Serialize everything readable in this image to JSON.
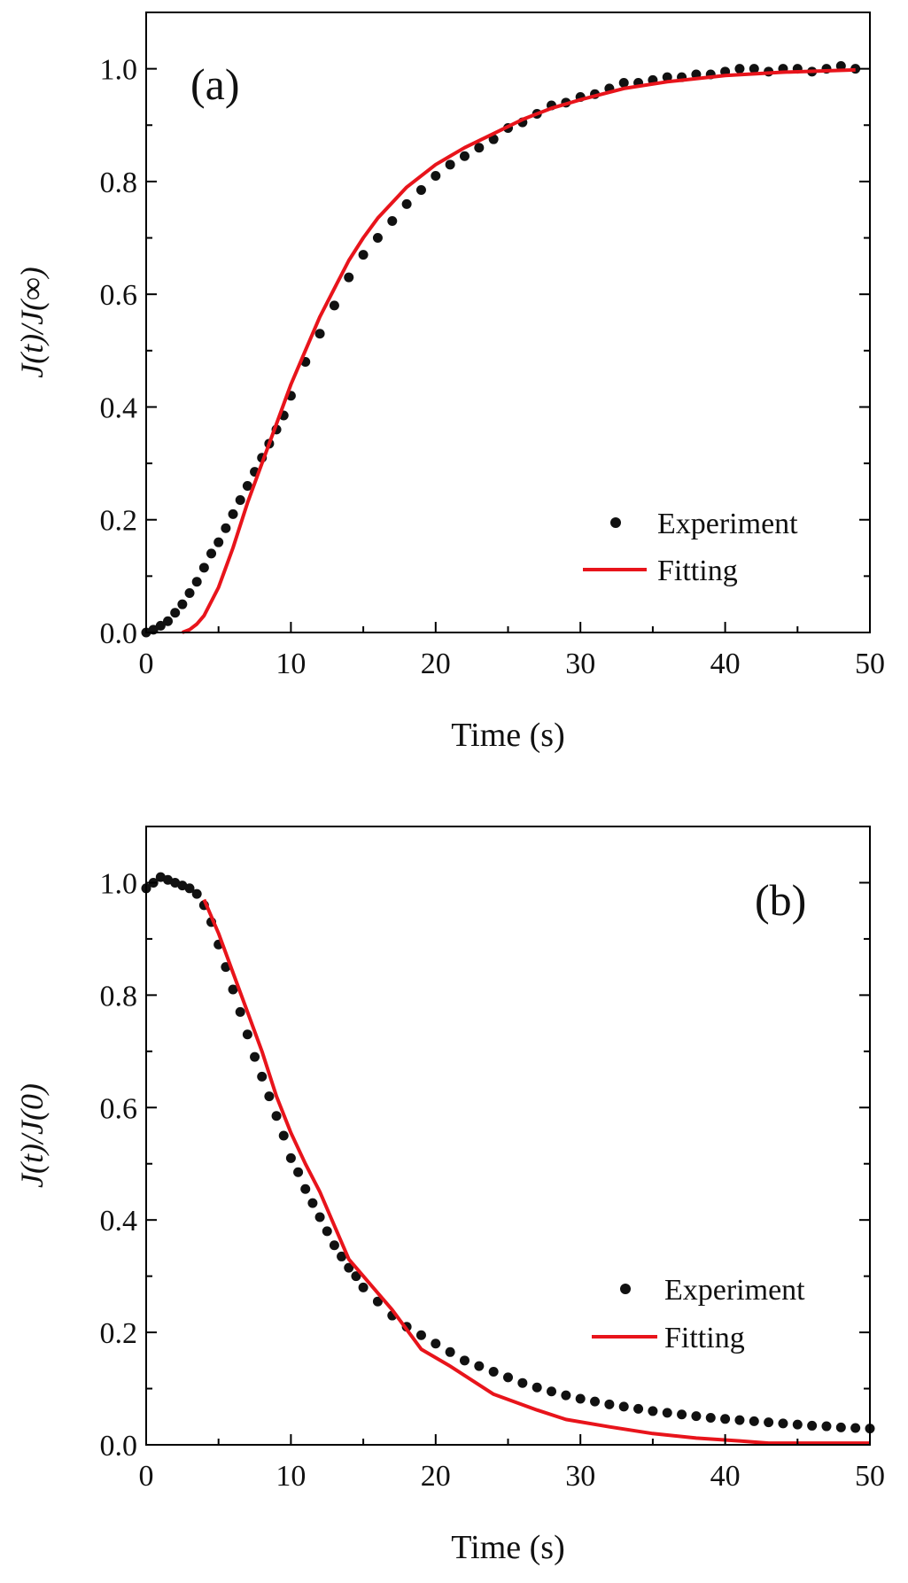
{
  "colors": {
    "experiment": "#111111",
    "fitting": "#e8141b",
    "axis": "#000000"
  },
  "chart_data": [
    {
      "type": "scatter",
      "panel_label": "(a)",
      "xlabel": "Time (s)",
      "ylabel": "J(t)/J(∞)",
      "xlim": [
        0,
        50
      ],
      "ylim": [
        0,
        1.1
      ],
      "xticks": [
        0,
        10,
        20,
        30,
        40,
        50
      ],
      "xtick_labels": [
        "0",
        "10",
        "20",
        "30",
        "40",
        "50"
      ],
      "yticks": [
        0,
        0.2,
        0.4,
        0.6,
        0.8,
        1.0
      ],
      "ytick_labels": [
        "0.0",
        "0.2",
        "0.4",
        "0.6",
        "0.8",
        "1.0"
      ],
      "legend_placement": "bottom-right",
      "series": [
        {
          "name": "Experiment",
          "style": "markers",
          "x": [
            0,
            0.5,
            1,
            1.5,
            2,
            2.5,
            3,
            3.5,
            4,
            4.5,
            5,
            5.5,
            6,
            6.5,
            7,
            7.5,
            8,
            8.5,
            9,
            9.5,
            10,
            11,
            12,
            13,
            14,
            15,
            16,
            17,
            18,
            19,
            20,
            21,
            22,
            23,
            24,
            25,
            26,
            27,
            28,
            29,
            30,
            31,
            32,
            33,
            34,
            35,
            36,
            37,
            38,
            39,
            40,
            41,
            42,
            43,
            44,
            45,
            46,
            47,
            48,
            49
          ],
          "y": [
            0,
            0.005,
            0.012,
            0.02,
            0.035,
            0.05,
            0.07,
            0.09,
            0.115,
            0.14,
            0.16,
            0.185,
            0.21,
            0.235,
            0.26,
            0.285,
            0.31,
            0.335,
            0.36,
            0.385,
            0.42,
            0.48,
            0.53,
            0.58,
            0.63,
            0.67,
            0.7,
            0.73,
            0.76,
            0.785,
            0.81,
            0.83,
            0.845,
            0.86,
            0.875,
            0.895,
            0.905,
            0.92,
            0.935,
            0.94,
            0.95,
            0.955,
            0.965,
            0.975,
            0.975,
            0.98,
            0.985,
            0.985,
            0.99,
            0.99,
            0.995,
            1.0,
            1.0,
            0.995,
            1.0,
            1.0,
            0.995,
            1.0,
            1.005,
            1.0
          ]
        },
        {
          "name": "Fitting",
          "style": "line",
          "x": [
            2.5,
            3,
            3.5,
            4,
            5,
            6,
            7,
            8,
            9,
            10,
            11,
            12,
            13,
            14,
            15,
            16,
            18,
            20,
            22,
            24,
            26,
            28,
            30,
            33,
            36,
            40,
            44,
            49
          ],
          "y": [
            0,
            0.005,
            0.015,
            0.03,
            0.08,
            0.15,
            0.23,
            0.3,
            0.37,
            0.44,
            0.5,
            0.56,
            0.61,
            0.66,
            0.7,
            0.735,
            0.79,
            0.83,
            0.86,
            0.885,
            0.91,
            0.93,
            0.945,
            0.965,
            0.977,
            0.988,
            0.994,
            0.998
          ]
        }
      ]
    },
    {
      "type": "scatter",
      "panel_label": "(b)",
      "xlabel": "Time (s)",
      "ylabel": "J(t)/J(0)",
      "xlim": [
        0,
        50
      ],
      "ylim": [
        0,
        1.1
      ],
      "xticks": [
        0,
        10,
        20,
        30,
        40,
        50
      ],
      "xtick_labels": [
        "0",
        "10",
        "20",
        "30",
        "40",
        "50"
      ],
      "yticks": [
        0,
        0.2,
        0.4,
        0.6,
        0.8,
        1.0
      ],
      "ytick_labels": [
        "0.0",
        "0.2",
        "0.4",
        "0.6",
        "0.8",
        "1.0"
      ],
      "legend_placement": "bottom-right",
      "series": [
        {
          "name": "Experiment",
          "style": "markers",
          "x": [
            0,
            0.5,
            1,
            1.5,
            2,
            2.5,
            3,
            3.5,
            4,
            4.5,
            5,
            5.5,
            6,
            6.5,
            7,
            7.5,
            8,
            8.5,
            9,
            9.5,
            10,
            10.5,
            11,
            11.5,
            12,
            12.5,
            13,
            13.5,
            14,
            14.5,
            15,
            16,
            17,
            18,
            19,
            20,
            21,
            22,
            23,
            24,
            25,
            26,
            27,
            28,
            29,
            30,
            31,
            32,
            33,
            34,
            35,
            36,
            37,
            38,
            39,
            40,
            41,
            42,
            43,
            44,
            45,
            46,
            47,
            48,
            49,
            50
          ],
          "y": [
            0.99,
            1.0,
            1.01,
            1.005,
            1.0,
            0.995,
            0.99,
            0.98,
            0.96,
            0.93,
            0.89,
            0.85,
            0.81,
            0.77,
            0.73,
            0.69,
            0.655,
            0.62,
            0.585,
            0.55,
            0.51,
            0.485,
            0.455,
            0.43,
            0.405,
            0.38,
            0.355,
            0.335,
            0.315,
            0.3,
            0.28,
            0.255,
            0.23,
            0.21,
            0.195,
            0.18,
            0.165,
            0.15,
            0.14,
            0.13,
            0.12,
            0.11,
            0.102,
            0.095,
            0.088,
            0.082,
            0.077,
            0.072,
            0.068,
            0.064,
            0.06,
            0.057,
            0.054,
            0.051,
            0.048,
            0.046,
            0.044,
            0.042,
            0.04,
            0.038,
            0.036,
            0.034,
            0.033,
            0.031,
            0.03,
            0.029
          ]
        },
        {
          "name": "Fitting",
          "style": "line",
          "x": [
            4,
            5,
            6,
            7,
            8,
            9,
            10,
            11,
            12,
            13,
            14,
            15,
            17,
            19,
            21,
            24,
            27,
            29,
            32,
            35,
            38,
            41,
            43,
            50
          ],
          "y": [
            0.97,
            0.91,
            0.84,
            0.77,
            0.7,
            0.62,
            0.555,
            0.5,
            0.45,
            0.39,
            0.33,
            0.3,
            0.24,
            0.17,
            0.14,
            0.09,
            0.062,
            0.045,
            0.032,
            0.02,
            0.012,
            0.007,
            0.003,
            0.003
          ]
        }
      ]
    }
  ]
}
